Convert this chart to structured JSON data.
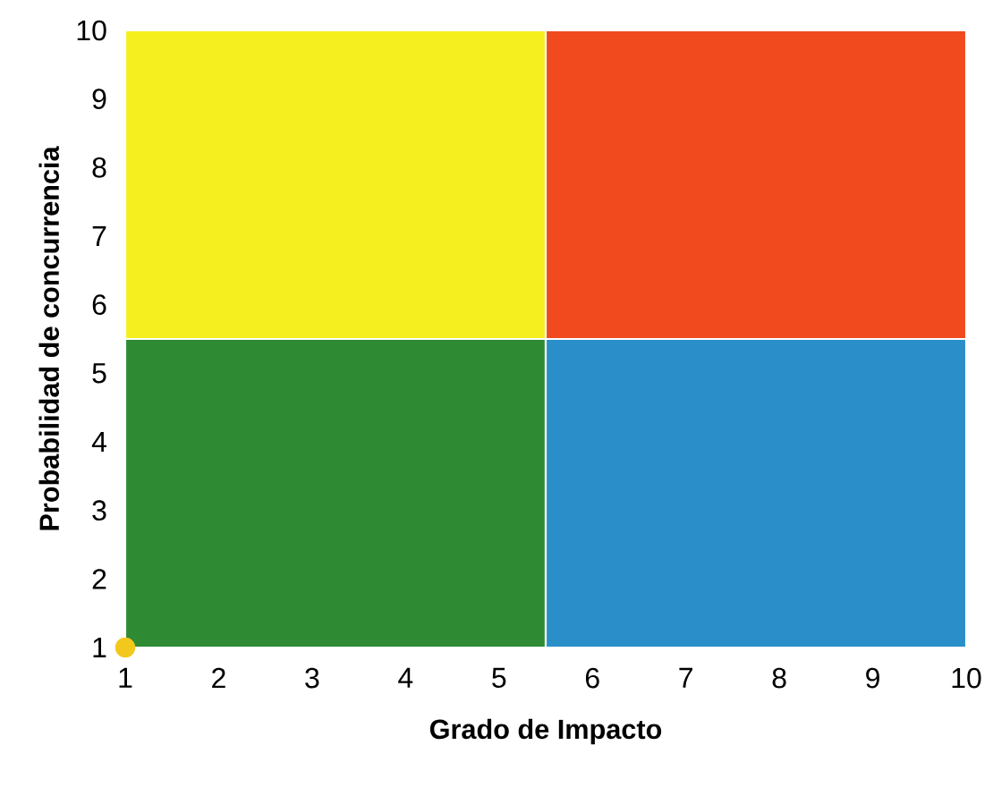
{
  "chart_data": {
    "type": "area",
    "xlabel": "Grado de Impacto",
    "ylabel": "Probabilidad de concurrencia",
    "xlim": [
      1,
      10
    ],
    "ylim": [
      1,
      10
    ],
    "xticks": [
      1,
      2,
      3,
      4,
      5,
      6,
      7,
      8,
      9,
      10
    ],
    "yticks": [
      1,
      2,
      3,
      4,
      5,
      6,
      7,
      8,
      9,
      10
    ],
    "series": [
      {
        "color": "#f5ef1f",
        "x": [
          1,
          5.5
        ],
        "values": [
          10,
          10
        ]
      },
      {
        "color": "#2e8b34",
        "x": [
          1,
          5.5
        ],
        "values": [
          5.5,
          5.5
        ]
      },
      {
        "color": "#f04a1e",
        "x": [
          5.5,
          10
        ],
        "values": [
          10,
          10
        ]
      },
      {
        "color": "#2a8fc8",
        "x": [
          5.5,
          10
        ],
        "values": [
          5.5,
          5.5
        ]
      },
      {
        "type": "scatter",
        "color": "#f2c81c",
        "x": [
          1
        ],
        "values": [
          1
        ]
      }
    ]
  }
}
